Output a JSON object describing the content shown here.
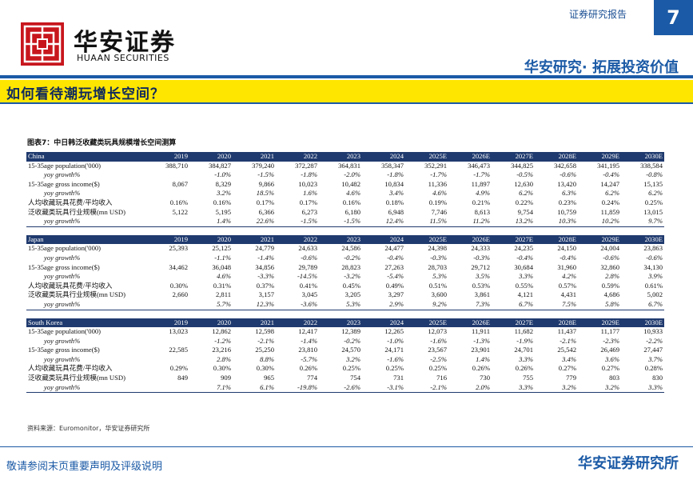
{
  "header": {
    "report_type": "证券研究报告",
    "page_number": "7",
    "logo_cn": "华安证券",
    "logo_en": "HUAAN SECURITIES",
    "slogan": "华安研究· 拓展投资价值"
  },
  "section_title": "如何看待潮玩增长空间？",
  "figure": {
    "title": "图表7：中日韩泛收藏类玩具规模增长空间测算",
    "blocks": [
      {
        "header": [
          "China",
          "2019",
          "2020",
          "2021",
          "2022",
          "2023",
          "2024",
          "2025E",
          "2026E",
          "2027E",
          "2028E",
          "2029E",
          "2030E"
        ],
        "rows": [
          [
            "15-35age population('000)",
            "388,710",
            "384,827",
            "379,240",
            "372,287",
            "364,831",
            "358,347",
            "352,291",
            "346,473",
            "344,825",
            "342,658",
            "341,195",
            "338,584"
          ],
          [
            "yoy growth%",
            null,
            "-1.0%",
            "-1.5%",
            "-1.8%",
            "-2.0%",
            "-1.8%",
            "-1.7%",
            "-1.7%",
            "-0.5%",
            "-0.6%",
            "-0.4%",
            "-0.8%"
          ],
          [
            "15-35age gross income($)",
            "8,067",
            "8,329",
            "9,866",
            "10,023",
            "10,482",
            "10,834",
            "11,336",
            "11,897",
            "12,630",
            "13,420",
            "14,247",
            "15,135"
          ],
          [
            "yoy growth%",
            null,
            "3.2%",
            "18.5%",
            "1.6%",
            "4.6%",
            "3.4%",
            "4.6%",
            "4.9%",
            "6.2%",
            "6.3%",
            "6.2%",
            "6.2%"
          ],
          [
            "人均收藏玩具花费/平均收入",
            "0.16%",
            "0.16%",
            "0.17%",
            "0.17%",
            "0.16%",
            "0.18%",
            "0.19%",
            "0.21%",
            "0.22%",
            "0.23%",
            "0.24%",
            "0.25%"
          ],
          [
            "泛收藏类玩具行业规模(mn USD)",
            "5,122",
            "5,195",
            "6,366",
            "6,273",
            "6,180",
            "6,948",
            "7,746",
            "8,613",
            "9,754",
            "10,759",
            "11,859",
            "13,015"
          ],
          [
            "yoy growth%",
            null,
            "1.4%",
            "22.6%",
            "-1.5%",
            "-1.5%",
            "12.4%",
            "11.5%",
            "11.2%",
            "13.2%",
            "10.3%",
            "10.2%",
            "9.7%"
          ]
        ]
      },
      {
        "header": [
          "Japan",
          "2019",
          "2020",
          "2021",
          "2022",
          "2023",
          "2024",
          "2025E",
          "2026E",
          "2027E",
          "2028E",
          "2029E",
          "2030E"
        ],
        "rows": [
          [
            "15-35age population('000)",
            "25,393",
            "25,125",
            "24,779",
            "24,633",
            "24,586",
            "24,477",
            "24,398",
            "24,333",
            "24,235",
            "24,150",
            "24,004",
            "23,863"
          ],
          [
            "yoy growth%",
            null,
            "-1.1%",
            "-1.4%",
            "-0.6%",
            "-0.2%",
            "-0.4%",
            "-0.3%",
            "-0.3%",
            "-0.4%",
            "-0.4%",
            "-0.6%",
            "-0.6%"
          ],
          [
            "15-35age gross income($)",
            "34,462",
            "36,048",
            "34,856",
            "29,789",
            "28,823",
            "27,263",
            "28,703",
            "29,712",
            "30,684",
            "31,960",
            "32,860",
            "34,130"
          ],
          [
            "yoy growth%",
            null,
            "4.6%",
            "-3.3%",
            "-14.5%",
            "-3.2%",
            "-5.4%",
            "5.3%",
            "3.5%",
            "3.3%",
            "4.2%",
            "2.8%",
            "3.9%"
          ],
          [
            "人均收藏玩具花费/平均收入",
            "0.30%",
            "0.31%",
            "0.37%",
            "0.41%",
            "0.45%",
            "0.49%",
            "0.51%",
            "0.53%",
            "0.55%",
            "0.57%",
            "0.59%",
            "0.61%"
          ],
          [
            "泛收藏类玩具行业规模(mn USD)",
            "2,660",
            "2,811",
            "3,157",
            "3,045",
            "3,205",
            "3,297",
            "3,600",
            "3,861",
            "4,121",
            "4,431",
            "4,686",
            "5,002"
          ],
          [
            "yoy growth%",
            null,
            "5.7%",
            "12.3%",
            "-3.6%",
            "5.3%",
            "2.9%",
            "9.2%",
            "7.3%",
            "6.7%",
            "7.5%",
            "5.8%",
            "6.7%"
          ]
        ]
      },
      {
        "header": [
          "South Korea",
          "2019",
          "2020",
          "2021",
          "2022",
          "2023",
          "2024",
          "2025E",
          "2026E",
          "2027E",
          "2028E",
          "2029E",
          "2030E"
        ],
        "rows": [
          [
            "15-35age population('000)",
            "13,023",
            "12,862",
            "12,598",
            "12,417",
            "12,389",
            "12,265",
            "12,073",
            "11,911",
            "11,682",
            "11,437",
            "11,177",
            "10,933"
          ],
          [
            "yoy growth%",
            null,
            "-1.2%",
            "-2.1%",
            "-1.4%",
            "-0.2%",
            "-1.0%",
            "-1.6%",
            "-1.3%",
            "-1.9%",
            "-2.1%",
            "-2.3%",
            "-2.2%"
          ],
          [
            "15-35age gross income($)",
            "22,585",
            "23,216",
            "25,250",
            "23,810",
            "24,570",
            "24,171",
            "23,567",
            "23,901",
            "24,701",
            "25,542",
            "26,469",
            "27,447"
          ],
          [
            "yoy growth%",
            null,
            "2.8%",
            "8.8%",
            "-5.7%",
            "3.2%",
            "-1.6%",
            "-2.5%",
            "1.4%",
            "3.3%",
            "3.4%",
            "3.6%",
            "3.7%"
          ],
          [
            "人均收藏玩具花费/平均收入",
            "0.29%",
            "0.30%",
            "0.30%",
            "0.26%",
            "0.25%",
            "0.25%",
            "0.25%",
            "0.26%",
            "0.26%",
            "0.27%",
            "0.27%",
            "0.28%"
          ],
          [
            "泛收藏类玩具行业规模(mn USD)",
            "849",
            "909",
            "965",
            "774",
            "754",
            "731",
            "716",
            "730",
            "755",
            "779",
            "803",
            "830"
          ],
          [
            "yoy growth%",
            null,
            "7.1%",
            "6.1%",
            "-19.8%",
            "-2.6%",
            "-3.1%",
            "-2.1%",
            "2.0%",
            "3.3%",
            "3.2%",
            "3.2%",
            "3.3%"
          ]
        ]
      }
    ],
    "source": "资料来源：Euromonitor，华安证券研究所"
  },
  "footer": {
    "disclaimer": "敬请参阅末页重要声明及评级说明",
    "brand": "华安证券研究所"
  }
}
